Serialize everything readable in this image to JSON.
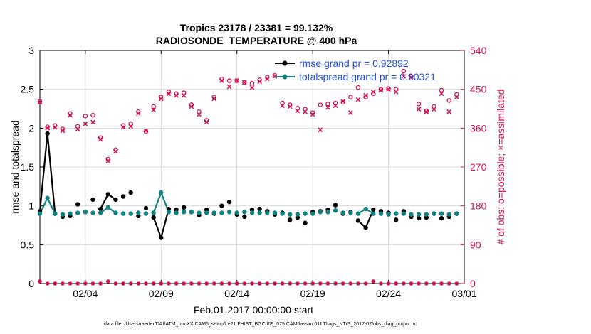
{
  "chart_data": {
    "type": "line",
    "title": "Tropics 23178 / 23381 = 99.132%",
    "subtitle": "RADIOSONDE_TEMPERATURE @ 400 hPa",
    "xlabel": "Feb.01,2017 00:00:00 start",
    "ylabel": "rmse and totalspread",
    "ylabel_right": "# of obs: o=possible; ×=assimilated",
    "footnote": "data file: /Users/raeder/DAI/ATM_forcXX/CAM6_setup/f.e21.FHIST_BGC.f09_025.CAM6assim.011/Diags_NTrS_2017-02/obs_diag_output.nc",
    "xlim": [
      0.5,
      28.5
    ],
    "ylim": [
      0,
      3
    ],
    "ylim_right": [
      0,
      540
    ],
    "x_ticks": [
      3.5,
      8.5,
      13.5,
      18.5,
      23.5,
      28.5
    ],
    "x_tick_labels": [
      "02/04",
      "02/09",
      "02/14",
      "02/19",
      "02/24",
      "03/01"
    ],
    "y_ticks": [
      0,
      0.5,
      1,
      1.5,
      2,
      2.5,
      3
    ],
    "y_tick_labels": [
      "0",
      "0.5",
      "1",
      "1.5",
      "2",
      "2.5",
      "3"
    ],
    "y_right_ticks": [
      0,
      90,
      180,
      270,
      360,
      450,
      540
    ],
    "y_right_tick_labels": [
      "0",
      "90",
      "180",
      "270",
      "360",
      "450",
      "540"
    ],
    "grid": true,
    "legend_position": "top-right",
    "x": [
      0.5,
      1.0,
      1.5,
      2.0,
      2.5,
      3.0,
      3.5,
      4.0,
      4.5,
      5.0,
      5.5,
      6.0,
      6.5,
      7.0,
      7.5,
      8.0,
      8.5,
      9.0,
      9.5,
      10.0,
      10.5,
      11.0,
      11.5,
      12.0,
      12.5,
      13.0,
      13.5,
      14.0,
      14.5,
      15.0,
      15.5,
      16.0,
      16.5,
      17.0,
      17.5,
      18.0,
      18.5,
      19.0,
      19.5,
      20.0,
      20.5,
      21.0,
      21.5,
      22.0,
      22.5,
      23.0,
      23.5,
      24.0,
      24.5,
      25.0,
      25.5,
      26.0,
      26.5,
      27.0,
      27.5,
      28.0
    ],
    "series": [
      {
        "name": "rmse",
        "legend": "rmse grand pr = 0.92892",
        "color": "#000000",
        "values": [
          0.93,
          1.93,
          0.9,
          0.86,
          0.87,
          1.02,
          0.92,
          1.08,
          0.96,
          1.15,
          1.08,
          1.12,
          1.17,
          0.87,
          0.97,
          0.85,
          0.59,
          0.96,
          0.95,
          0.98,
          0.92,
          0.88,
          0.95,
          0.9,
          1.0,
          1.05,
          0.89,
          0.86,
          0.95,
          0.96,
          0.93,
          0.89,
          0.91,
          0.82,
          0.85,
          0.78,
          0.92,
          0.93,
          0.95,
          1.01,
          0.9,
          0.92,
          0.81,
          0.72,
          0.95,
          0.93,
          0.91,
          0.82,
          0.93,
          0.86,
          0.84,
          0.85,
          0.9,
          0.84,
          0.86,
          0.9
        ]
      },
      {
        "name": "totalspread",
        "legend": "totalspread grand pr = 0.90321",
        "color": "#108080",
        "values": [
          0.9,
          1.1,
          0.9,
          0.89,
          0.9,
          0.91,
          0.92,
          0.91,
          0.91,
          0.98,
          0.91,
          0.9,
          0.9,
          0.91,
          0.9,
          0.91,
          1.17,
          0.92,
          0.91,
          0.92,
          0.92,
          0.91,
          0.91,
          0.91,
          0.91,
          0.92,
          0.91,
          0.92,
          0.91,
          0.91,
          0.91,
          0.91,
          0.9,
          0.89,
          0.89,
          0.9,
          0.9,
          0.92,
          0.92,
          0.94,
          0.91,
          0.91,
          0.9,
          0.96,
          0.9,
          0.9,
          0.89,
          0.9,
          0.9,
          0.89,
          0.89,
          0.89,
          0.9,
          0.9,
          0.89,
          0.9
        ]
      },
      {
        "name": "obs_possible",
        "color": "#d0104c",
        "axis": "right",
        "values": [
          422,
          363,
          366,
          358,
          394,
          364,
          388,
          390,
          338,
          288,
          310,
          366,
          370,
          398,
          352,
          410,
          432,
          444,
          440,
          442,
          414,
          398,
          378,
          432,
          474,
          470,
          470,
          466,
          464,
          472,
          478,
          482,
          418,
          414,
          406,
          404,
          396,
          414,
          416,
          418,
          420,
          432,
          454,
          432,
          440,
          450,
          452,
          450,
          492,
          480,
          416,
          400,
          410,
          448,
          424,
          438
        ]
      },
      {
        "name": "obs_assimilated",
        "color": "#d0104c",
        "axis": "right",
        "values": [
          420,
          360,
          362,
          354,
          390,
          358,
          370,
          374,
          334,
          284,
          306,
          362,
          364,
          394,
          354,
          402,
          428,
          440,
          436,
          436,
          410,
          392,
          374,
          428,
          470,
          456,
          470,
          466,
          454,
          468,
          474,
          480,
          412,
          410,
          400,
          398,
          392,
          356,
          408,
          412,
          422,
          396,
          426,
          436,
          444,
          448,
          450,
          444,
          480,
          478,
          404,
          398,
          404,
          440,
          398,
          432
        ]
      },
      {
        "name": "obs_rejected_possible",
        "color": "#d0104c",
        "axis": "right",
        "values": [
          5,
          0,
          0,
          0,
          0,
          0,
          0,
          0,
          0,
          5,
          0,
          0,
          0,
          0,
          0,
          0,
          0,
          0,
          0,
          0,
          0,
          0,
          0,
          0,
          0,
          0,
          0,
          0,
          0,
          0,
          0,
          0,
          0,
          0,
          0,
          0,
          0,
          0,
          0,
          0,
          0,
          0,
          0,
          0,
          5,
          0,
          0,
          0,
          0,
          0,
          0,
          0,
          0,
          0,
          0,
          0
        ]
      }
    ]
  }
}
